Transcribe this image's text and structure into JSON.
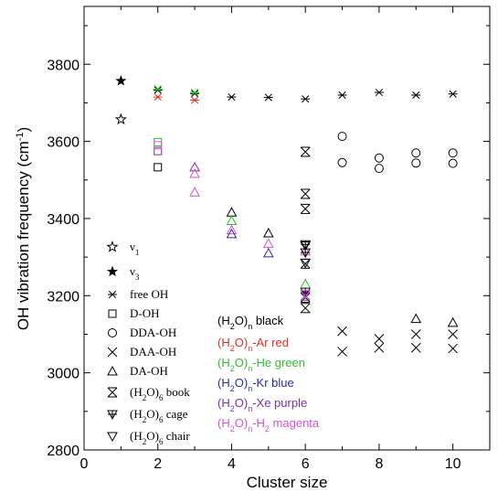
{
  "chart_data": {
    "type": "scatter",
    "title": "",
    "xlabel": "Cluster size",
    "ylabel": "OH vibration frequency (cm",
    "ylabel_sup": "-1",
    "ylabel_close": ")",
    "xlim": [
      0,
      11
    ],
    "ylim": [
      2800,
      3950
    ],
    "xticks": [
      "0",
      "2",
      "4",
      "6",
      "8",
      "10"
    ],
    "xtick_values": [
      0,
      2,
      4,
      6,
      8,
      10
    ],
    "yticks": [
      "2800",
      "3000",
      "3200",
      "3400",
      "3600",
      "3800"
    ],
    "ytick_values": [
      2800,
      3000,
      3200,
      3400,
      3600,
      3800
    ],
    "colors": {
      "black": "#000000",
      "red": "#e0302a",
      "green": "#2ebd2e",
      "blue": "#2a2aa8",
      "purple": "#7a2f9e",
      "magenta": "#d055d0"
    },
    "legend_markers": [
      {
        "symbol": "star-open",
        "label": "ν",
        "sub": "1"
      },
      {
        "symbol": "star-filled",
        "label": "ν",
        "sub": "3"
      },
      {
        "symbol": "asterisk",
        "label": "free OH",
        "sub": ""
      },
      {
        "symbol": "square",
        "label": "D-OH",
        "sub": ""
      },
      {
        "symbol": "circle",
        "label": "DDA-OH",
        "sub": ""
      },
      {
        "symbol": "x",
        "label": "DAA-OH",
        "sub": ""
      },
      {
        "symbol": "triangle-up",
        "label": "DA-OH",
        "sub": ""
      },
      {
        "symbol": "x-in-x",
        "label": "(H",
        "sub": "2",
        "rest": "O)",
        "sub2": "6",
        "tail": " book"
      },
      {
        "symbol": "triangle-down-plus",
        "label": "(H",
        "sub": "2",
        "rest": "O)",
        "sub2": "6",
        "tail": " cage"
      },
      {
        "symbol": "triangle-down",
        "label": "(H",
        "sub": "2",
        "rest": "O)",
        "sub2": "6",
        "tail": " chair"
      }
    ],
    "legend_colors": [
      {
        "text": "(H",
        "sub": "2",
        "rest": "O)",
        "sub2": "n",
        "tail": " black",
        "color": "black"
      },
      {
        "text": "(H",
        "sub": "2",
        "rest": "O)",
        "sub2": "n",
        "tail": "-Ar red",
        "color": "red"
      },
      {
        "text": "(H",
        "sub": "2",
        "rest": "O)",
        "sub2": "n",
        "tail": "-He green",
        "color": "green"
      },
      {
        "text": "(H",
        "sub": "2",
        "rest": "O)",
        "sub2": "n",
        "tail": "-Kr blue",
        "color": "blue"
      },
      {
        "text": "(H",
        "sub": "2",
        "rest": "O)",
        "sub2": "n",
        "tail": "-Xe purple",
        "color": "purple"
      },
      {
        "text": "(H",
        "sub": "2",
        "rest": "O)",
        "sub2": "n",
        "tail": "-H",
        "sub3": "2",
        "tail2": " magenta",
        "color": "magenta"
      }
    ],
    "series": [
      {
        "symbol": "star-filled",
        "color": "black",
        "points": [
          [
            1,
            3757
          ]
        ]
      },
      {
        "symbol": "star-open",
        "color": "black",
        "points": [
          [
            1,
            3657
          ]
        ]
      },
      {
        "symbol": "asterisk",
        "color": "black",
        "points": [
          [
            2,
            3733
          ],
          [
            3,
            3724
          ],
          [
            4,
            3715
          ],
          [
            5,
            3714
          ],
          [
            6,
            3710
          ],
          [
            7,
            3720
          ],
          [
            8,
            3727
          ],
          [
            9,
            3720
          ],
          [
            10,
            3723
          ]
        ]
      },
      {
        "symbol": "asterisk",
        "color": "red",
        "points": [
          [
            2,
            3715
          ],
          [
            3,
            3707
          ]
        ]
      },
      {
        "symbol": "asterisk",
        "color": "green",
        "points": [
          [
            2,
            3736
          ],
          [
            3,
            3727
          ]
        ]
      },
      {
        "symbol": "square",
        "color": "black",
        "points": [
          [
            2,
            3533
          ]
        ]
      },
      {
        "symbol": "square",
        "color": "green",
        "points": [
          [
            2,
            3598
          ]
        ]
      },
      {
        "symbol": "square",
        "color": "purple",
        "points": [
          [
            2,
            3575
          ]
        ]
      },
      {
        "symbol": "square",
        "color": "magenta",
        "points": [
          [
            2,
            3590
          ]
        ]
      },
      {
        "symbol": "circle",
        "color": "black",
        "points": [
          [
            7,
            3613
          ],
          [
            7,
            3545
          ],
          [
            8,
            3557
          ],
          [
            8,
            3530
          ],
          [
            9,
            3570
          ],
          [
            9,
            3544
          ],
          [
            10,
            3570
          ],
          [
            10,
            3543
          ]
        ]
      },
      {
        "symbol": "x",
        "color": "black",
        "points": [
          [
            7,
            3108
          ],
          [
            7,
            3055
          ],
          [
            8,
            3088
          ],
          [
            8,
            3065
          ],
          [
            9,
            3100
          ],
          [
            9,
            3065
          ],
          [
            10,
            3100
          ],
          [
            10,
            3063
          ]
        ]
      },
      {
        "symbol": "triangle-up",
        "color": "black",
        "points": [
          [
            4,
            3416
          ],
          [
            5,
            3362
          ],
          [
            9,
            3140
          ],
          [
            10,
            3130
          ]
        ]
      },
      {
        "symbol": "triangle-up",
        "color": "purple",
        "points": [
          [
            3,
            3533
          ]
        ]
      },
      {
        "symbol": "triangle-up",
        "color": "magenta",
        "points": [
          [
            3,
            3468
          ],
          [
            3,
            3516
          ],
          [
            4,
            3370
          ],
          [
            5,
            3335
          ],
          [
            6,
            3315
          ]
        ]
      },
      {
        "symbol": "triangle-up",
        "color": "green",
        "points": [
          [
            4,
            3394
          ]
        ]
      },
      {
        "symbol": "triangle-up",
        "color": "blue",
        "points": [
          [
            4,
            3360
          ],
          [
            5,
            3310
          ]
        ]
      },
      {
        "symbol": "x-in-x",
        "color": "black",
        "points": [
          [
            6,
            3573
          ],
          [
            6,
            3464
          ],
          [
            6,
            3425
          ],
          [
            6,
            3283
          ],
          [
            6,
            3195
          ],
          [
            6,
            3168
          ]
        ]
      },
      {
        "symbol": "triangle-down-plus",
        "color": "black",
        "points": [
          [
            6,
            3333
          ],
          [
            6,
            3312
          ],
          [
            6,
            3210
          ]
        ]
      },
      {
        "symbol": "triangle-down",
        "color": "black",
        "points": [
          [
            6,
            3330
          ],
          [
            6,
            3285
          ]
        ]
      },
      {
        "symbol": "triangle-up",
        "color": "green",
        "points": [
          [
            6,
            3230
          ]
        ]
      },
      {
        "symbol": "x-in-x",
        "color": "purple",
        "points": [
          [
            6,
            3200
          ]
        ]
      },
      {
        "symbol": "triangle-down",
        "color": "magenta",
        "points": [
          [
            6,
            3205
          ]
        ]
      }
    ]
  }
}
